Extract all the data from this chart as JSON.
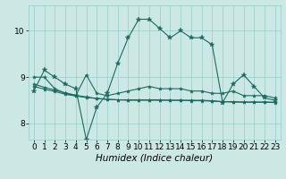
{
  "xlabel": "Humidex (Indice chaleur)",
  "background_color": "#cce8e4",
  "grid_color": "#99ccc7",
  "line_color": "#1a6b5e",
  "xlim": [
    -0.5,
    23.5
  ],
  "ylim": [
    7.65,
    10.55
  ],
  "yticks": [
    8,
    9,
    10
  ],
  "xtick_labels": [
    "0",
    "1",
    "2",
    "3",
    "4",
    "5",
    "6",
    "7",
    "8",
    "9",
    "10",
    "11",
    "12",
    "13",
    "14",
    "15",
    "16",
    "17",
    "18",
    "19",
    "20",
    "21",
    "22",
    "23"
  ],
  "series": [
    [
      8.7,
      9.15,
      9.0,
      8.85,
      8.75,
      7.65,
      8.35,
      8.65,
      9.3,
      9.85,
      10.25,
      10.25,
      10.05,
      9.85,
      10.0,
      9.85,
      9.85,
      9.7,
      8.45,
      8.85,
      9.05,
      8.8,
      8.55,
      8.5
    ],
    [
      9.0,
      9.0,
      8.75,
      8.65,
      8.6,
      9.05,
      8.65,
      8.6,
      8.65,
      8.7,
      8.75,
      8.8,
      8.75,
      8.75,
      8.75,
      8.7,
      8.7,
      8.65,
      8.65,
      8.7,
      8.6,
      8.6,
      8.6,
      8.55
    ],
    [
      8.85,
      8.78,
      8.72,
      8.66,
      8.61,
      8.57,
      8.54,
      8.52,
      8.51,
      8.51,
      8.51,
      8.51,
      8.51,
      8.5,
      8.5,
      8.5,
      8.5,
      8.49,
      8.47,
      8.47,
      8.46,
      8.46,
      8.46,
      8.46
    ],
    [
      8.8,
      8.74,
      8.69,
      8.63,
      8.59,
      8.56,
      8.54,
      8.52,
      8.51,
      8.5,
      8.5,
      8.5,
      8.5,
      8.5,
      8.5,
      8.49,
      8.49,
      8.48,
      8.47,
      8.46,
      8.46,
      8.46,
      8.46,
      8.45
    ]
  ],
  "fontsize_tick": 6.5,
  "fontsize_label": 7.5,
  "linewidth": 0.8,
  "marker": "*",
  "marker_sizes": [
    4.0,
    3.0,
    3.0,
    3.0
  ]
}
